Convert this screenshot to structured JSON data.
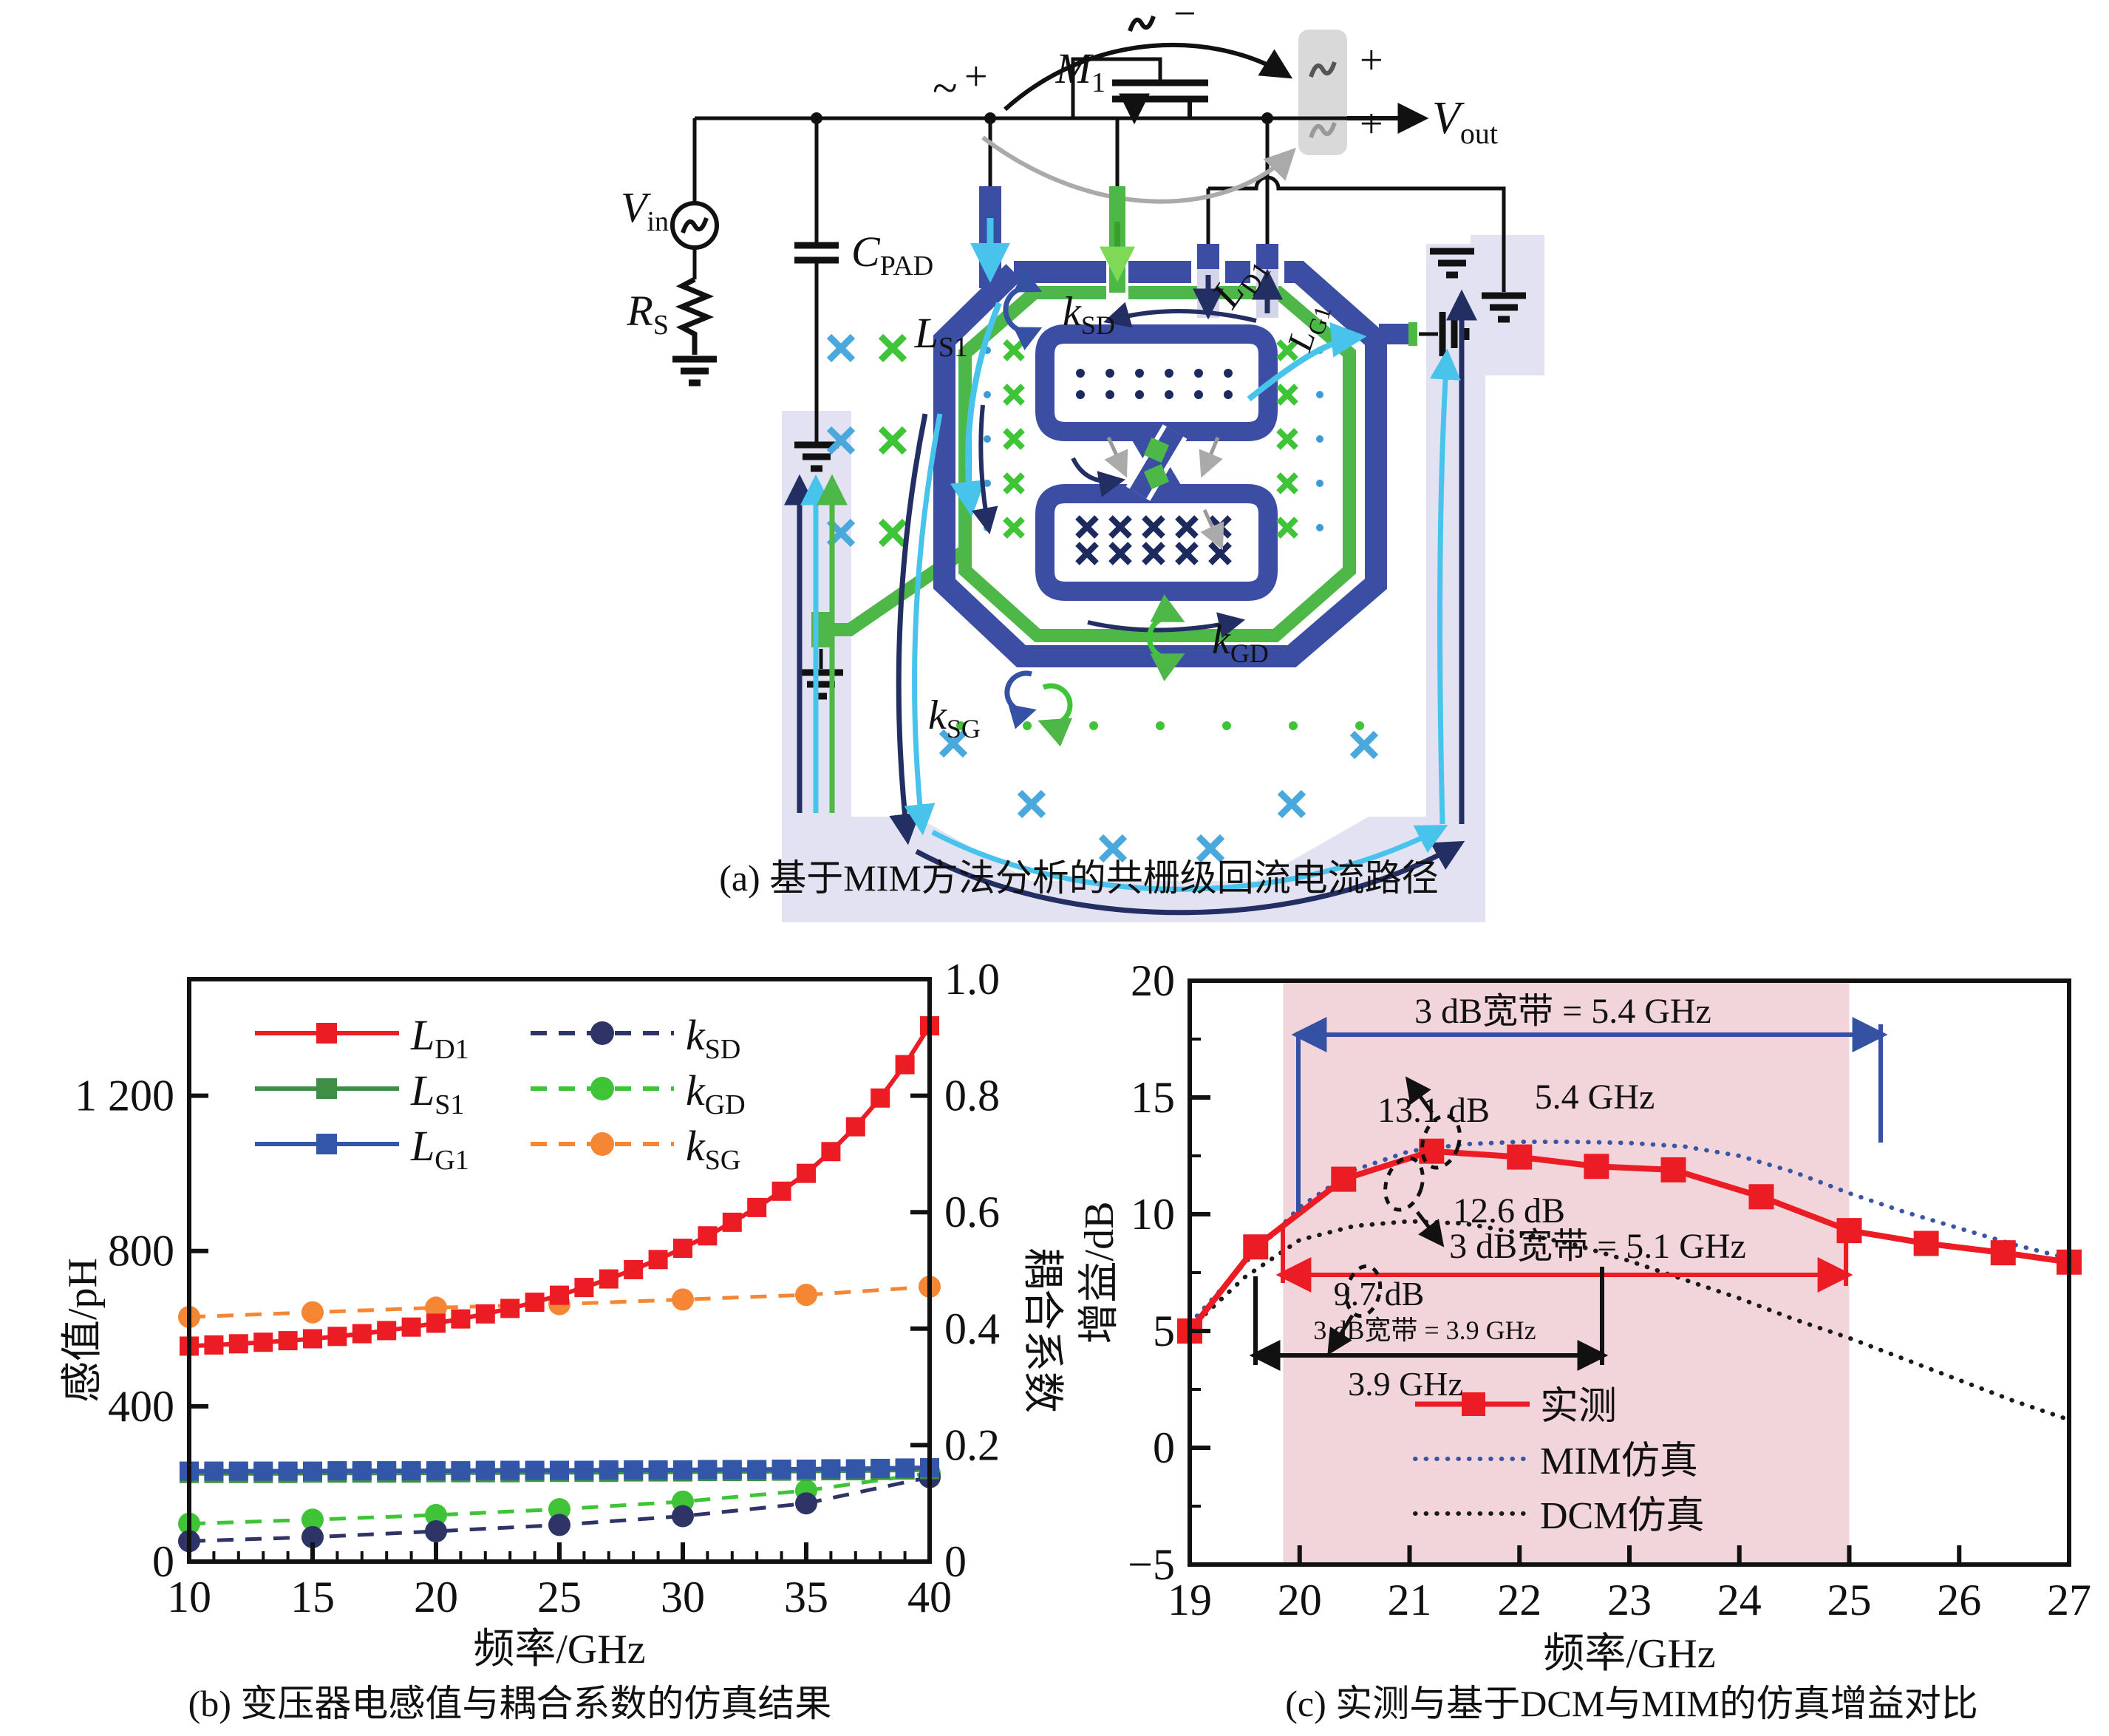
{
  "colors": {
    "red": "#ec1c24",
    "annotation_blue": "#3551a3",
    "orange": "#f58634",
    "winding_blue": "#3b4ea3",
    "winding_green": "#4db748",
    "cyan": "#48c4ec",
    "navy": "#232e63",
    "lavender": "#e2e2f2",
    "pink_band": "#f2d4db",
    "ls1_green": "#3e8f43",
    "lg1_blue": "#3356a8",
    "ksd_navy": "#2e3566",
    "kgd_green": "#3fc437",
    "vout_blue": "#58b7e8",
    "gray_box": "#d9d9d9"
  },
  "panel_a": {
    "caption": "(a) 基于MIM方法分析的共栅级回流电流路径",
    "labels": {
      "vin": {
        "main": "V",
        "sub": "in"
      },
      "rs": {
        "main": "R",
        "sub": "S"
      },
      "cpad": {
        "main": "C",
        "sub": "PAD"
      },
      "m1": {
        "main": "M",
        "sub": "1"
      },
      "vout": {
        "main": "V",
        "sub": "out"
      },
      "ls1": {
        "main": "L",
        "sub": "S1"
      },
      "ld1": {
        "main": "L",
        "sub": "D1"
      },
      "lg1": {
        "main": "L",
        "sub": "G1"
      },
      "ksd": {
        "main": "k",
        "sub": "SD"
      },
      "kgd": {
        "main": "k",
        "sub": "GD"
      },
      "ksg": {
        "main": "k",
        "sub": "SG"
      },
      "input_tilde": "~",
      "input_plus": "+",
      "gate_minus": "−",
      "out_plus_top": "+",
      "out_plus_bottom": "+"
    }
  },
  "chart_data": [
    {
      "panel": "b",
      "type": "line",
      "caption": "(b) 变压器电感值与耦合系数的仿真结果",
      "xlabel": "频率/GHz",
      "ylabel_left": "感值/pH",
      "ylabel_right": "耦合系数",
      "xlim": [
        10,
        40
      ],
      "ylim_left": [
        0,
        1500
      ],
      "ylim_right": [
        0,
        1.0
      ],
      "grid": false,
      "legend_position": "upper-left-inside",
      "xticks": {
        "values": [
          10,
          15,
          20,
          25,
          30,
          35,
          40
        ],
        "labels": [
          "10",
          "15",
          "20",
          "25",
          "30",
          "35",
          "40"
        ]
      },
      "yticks_left": {
        "values": [
          0,
          400,
          800,
          1200
        ],
        "labels": [
          "0",
          "400",
          "800",
          "1 200"
        ]
      },
      "yticks_right": {
        "values": [
          0,
          0.2,
          0.4,
          0.6,
          0.8,
          1.0
        ],
        "labels": [
          "0",
          "0.2",
          "0.4",
          "0.6",
          "0.8",
          "1.0"
        ]
      },
      "series": [
        {
          "name": "L_D1",
          "legend": {
            "main": "L",
            "sub": "D1"
          },
          "axis": "left",
          "color": "#ec1c24",
          "style": "solid",
          "marker": "square",
          "x": [
            10,
            11,
            12,
            13,
            14,
            15,
            16,
            17,
            18,
            19,
            20,
            21,
            22,
            23,
            24,
            25,
            26,
            27,
            28,
            29,
            30,
            31,
            32,
            33,
            34,
            35,
            36,
            37,
            38,
            39,
            40
          ],
          "y": [
            555,
            558,
            561,
            565,
            569,
            574,
            580,
            587,
            595,
            604,
            614,
            625,
            638,
            652,
            668,
            686,
            706,
            728,
            752,
            778,
            807,
            839,
            874,
            912,
            954,
            1000,
            1056,
            1120,
            1194,
            1280,
            1380
          ]
        },
        {
          "name": "L_S1",
          "legend": {
            "main": "L",
            "sub": "S1"
          },
          "axis": "left",
          "color": "#3e8f43",
          "style": "solid",
          "marker": "square",
          "x": [
            10,
            11,
            12,
            13,
            14,
            15,
            16,
            17,
            18,
            19,
            20,
            21,
            22,
            23,
            24,
            25,
            26,
            27,
            28,
            29,
            30,
            31,
            32,
            33,
            34,
            35,
            36,
            37,
            38,
            39,
            40
          ],
          "y": [
            227,
            227,
            227,
            227,
            227,
            228,
            228,
            228,
            228,
            228,
            229,
            229,
            229,
            229,
            230,
            230,
            230,
            230,
            231,
            231,
            231,
            232,
            232,
            232,
            233,
            233,
            234,
            234,
            235,
            236,
            237
          ]
        },
        {
          "name": "L_G1",
          "legend": {
            "main": "L",
            "sub": "G1"
          },
          "axis": "left",
          "color": "#3356a8",
          "style": "solid",
          "marker": "square",
          "x": [
            10,
            11,
            12,
            13,
            14,
            15,
            16,
            17,
            18,
            19,
            20,
            21,
            22,
            23,
            24,
            25,
            26,
            27,
            28,
            29,
            30,
            31,
            32,
            33,
            34,
            35,
            36,
            37,
            38,
            39,
            40
          ],
          "y": [
            233,
            233,
            233,
            233,
            233,
            233,
            234,
            234,
            234,
            234,
            234,
            234,
            235,
            235,
            235,
            235,
            235,
            236,
            236,
            236,
            236,
            237,
            237,
            237,
            238,
            238,
            239,
            239,
            240,
            241,
            242
          ]
        },
        {
          "name": "k_SD",
          "legend": {
            "main": "k",
            "sub": "SD"
          },
          "axis": "right",
          "color": "#2e3566",
          "style": "dashed",
          "marker": "circle",
          "x": [
            10,
            15,
            20,
            25,
            30,
            35,
            40
          ],
          "y": [
            0.035,
            0.042,
            0.052,
            0.063,
            0.078,
            0.1,
            0.145
          ]
        },
        {
          "name": "k_GD",
          "legend": {
            "main": "k",
            "sub": "GD"
          },
          "axis": "right",
          "color": "#3fc437",
          "style": "dashed",
          "marker": "circle",
          "x": [
            10,
            15,
            20,
            25,
            30,
            35,
            40
          ],
          "y": [
            0.065,
            0.072,
            0.08,
            0.09,
            0.103,
            0.122,
            0.152
          ]
        },
        {
          "name": "k_SG",
          "legend": {
            "main": "k",
            "sub": "SG"
          },
          "axis": "right",
          "color": "#f58634",
          "style": "dashed",
          "marker": "circle",
          "x": [
            10,
            15,
            20,
            25,
            30,
            35,
            40
          ],
          "y": [
            0.42,
            0.428,
            0.436,
            0.442,
            0.45,
            0.458,
            0.472
          ]
        }
      ]
    },
    {
      "panel": "c",
      "type": "line",
      "caption": "(c) 实测与基于DCM与MIM的仿真增益对比",
      "xlabel": "频率/GHz",
      "ylabel": "增益/dB",
      "xlim": [
        19,
        27
      ],
      "ylim": [
        -5,
        20
      ],
      "grid": false,
      "band": {
        "x0": 19.85,
        "x1": 25.0,
        "color": "#f2d4db"
      },
      "legend_position": "lower-center-inside",
      "xticks": {
        "values": [
          19,
          20,
          21,
          22,
          23,
          24,
          25,
          26,
          27
        ],
        "labels": [
          "19",
          "20",
          "21",
          "22",
          "23",
          "24",
          "25",
          "26",
          "27"
        ]
      },
      "yticks": {
        "values": [
          -5,
          0,
          5,
          10,
          15,
          20
        ],
        "labels": [
          "−5",
          "0",
          "5",
          "10",
          "15",
          "20"
        ]
      },
      "series": [
        {
          "name": "measured",
          "legend": "实测",
          "color": "#ec1c24",
          "style": "solid",
          "marker": "square",
          "x": [
            19,
            19.6,
            20.4,
            21.2,
            22.0,
            22.7,
            23.4,
            24.2,
            25.0,
            25.7,
            26.4,
            27.0
          ],
          "y": [
            5.0,
            8.6,
            11.5,
            12.7,
            12.45,
            12.05,
            11.9,
            10.75,
            9.3,
            8.75,
            8.35,
            7.95
          ]
        },
        {
          "name": "MIM_sim",
          "legend": "MIM仿真",
          "color": "#3a55a5",
          "style": "dotted",
          "marker": "none",
          "x": [
            19,
            19.5,
            20,
            20.5,
            21,
            21.5,
            22,
            22.5,
            23,
            23.5,
            24,
            24.5,
            25,
            25.5,
            26,
            26.5,
            27
          ],
          "y": [
            5.3,
            7.9,
            10.3,
            11.9,
            12.7,
            13.0,
            13.1,
            13.1,
            13.05,
            12.9,
            12.5,
            11.8,
            10.9,
            10.1,
            9.4,
            8.7,
            8.1
          ]
        },
        {
          "name": "DCM_sim",
          "legend": "DCM仿真",
          "color": "#1a1a1a",
          "style": "dotted",
          "marker": "none",
          "x": [
            19,
            19.5,
            20,
            20.5,
            21,
            21.5,
            22,
            22.5,
            23,
            23.5,
            24,
            24.5,
            25,
            25.5,
            26,
            26.5,
            27
          ],
          "y": [
            5.1,
            7.3,
            8.9,
            9.5,
            9.7,
            9.6,
            9.2,
            8.7,
            8.0,
            7.2,
            6.4,
            5.5,
            4.7,
            3.8,
            2.9,
            2.0,
            1.2
          ]
        }
      ],
      "annotations": [
        {
          "id": "bw_mim",
          "text": "3 dB宽带 = 5.4 GHz",
          "color": "#3551a3"
        },
        {
          "id": "bw_mim_val",
          "text": "5.4 GHz",
          "color": "#3551a3"
        },
        {
          "id": "gain_mim",
          "text": "13.1 dB",
          "color": "#3551a3"
        },
        {
          "id": "gain_meas",
          "text": "12.6 dB",
          "color": "#ec1c24"
        },
        {
          "id": "bw_meas",
          "text": "3 dB宽带 = 5.1 GHz",
          "color": "#ec1c24"
        },
        {
          "id": "gain_dcm",
          "text": "9.7 dB",
          "color": "#1a1a1a"
        },
        {
          "id": "bw_dcm",
          "text": "3 dB宽带 = 3.9 GHz",
          "color": "#1a1a1a"
        },
        {
          "id": "bw_dcm_val",
          "text": "3.9 GHz",
          "color": "#1a1a1a"
        }
      ]
    }
  ]
}
